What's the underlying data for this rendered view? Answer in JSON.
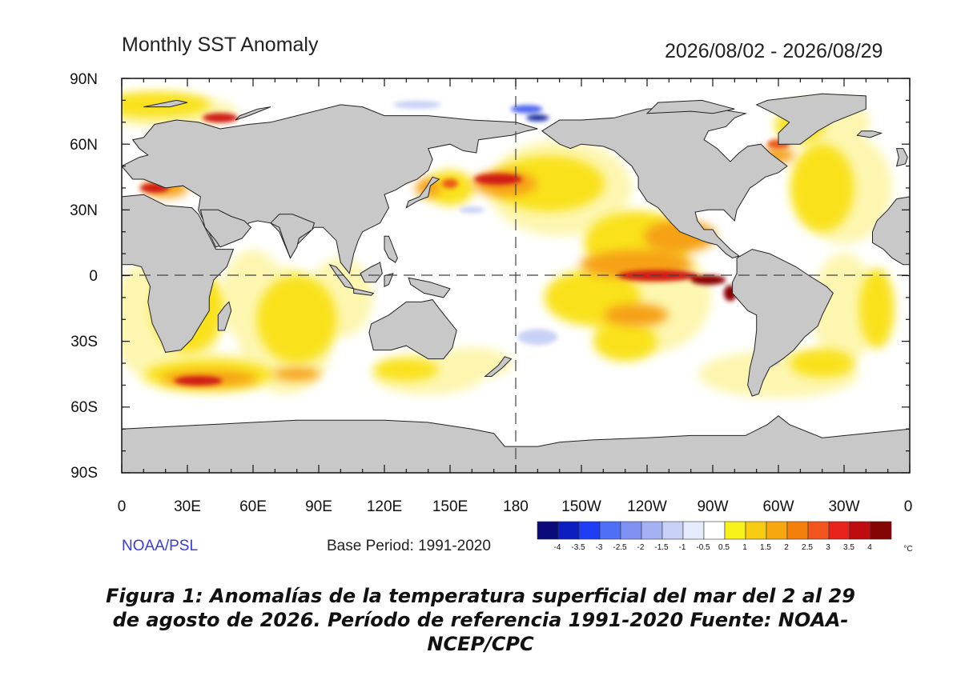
{
  "figure": {
    "title": "Monthly SST Anomaly",
    "date_range": "2026/08/02 - 2026/08/29",
    "source": "NOAA/PSL",
    "base_period": "Base Period: 1991-2020",
    "colorbar_unit": "°C",
    "caption_lines": [
      "Figura 1: Anomalías de la temperatura superficial del mar del 2 al 29",
      "de agosto de 2026. Período de referencia 1991-2020 Fuente: NOAA-",
      "NCEP/CPC"
    ]
  },
  "axes": {
    "lat_labels": [
      "90N",
      "60N",
      "30N",
      "0",
      "30S",
      "60S",
      "90S"
    ],
    "lon_labels": [
      "0",
      "30E",
      "60E",
      "90E",
      "120E",
      "150E",
      "180",
      "150W",
      "120W",
      "90W",
      "60W",
      "30W",
      "0"
    ]
  },
  "colorbar": {
    "tick_labels": [
      "-4",
      "-3.5",
      "-3",
      "-2.5",
      "-2",
      "-1.5",
      "-1",
      "-0.5",
      "0.5",
      "1",
      "1.5",
      "2",
      "2.5",
      "3",
      "3.5",
      "4"
    ],
    "colors": [
      "#0a0a7a",
      "#0c1ec0",
      "#1f3df5",
      "#4f6ff7",
      "#7f92f3",
      "#a5b1f3",
      "#c8d0f5",
      "#e6ebfb",
      "#ffffff",
      "#f8f21a",
      "#f8cb13",
      "#f8a80f",
      "#f57f0c",
      "#f1541c",
      "#e8221c",
      "#bf0c10",
      "#850404"
    ]
  },
  "map_colors": {
    "land": "#c8c8c8",
    "ocean_neutral": "#ffffff",
    "pale_yellow": "#fdf6b0",
    "yellow": "#f9e21c",
    "orange": "#f6a116",
    "deep_orange": "#ec5a17",
    "red": "#d01a12",
    "dark_red": "#8b0606",
    "pale_blue": "#c9d1f6",
    "blue": "#4b64ef",
    "dark_blue": "#10269c"
  }
}
